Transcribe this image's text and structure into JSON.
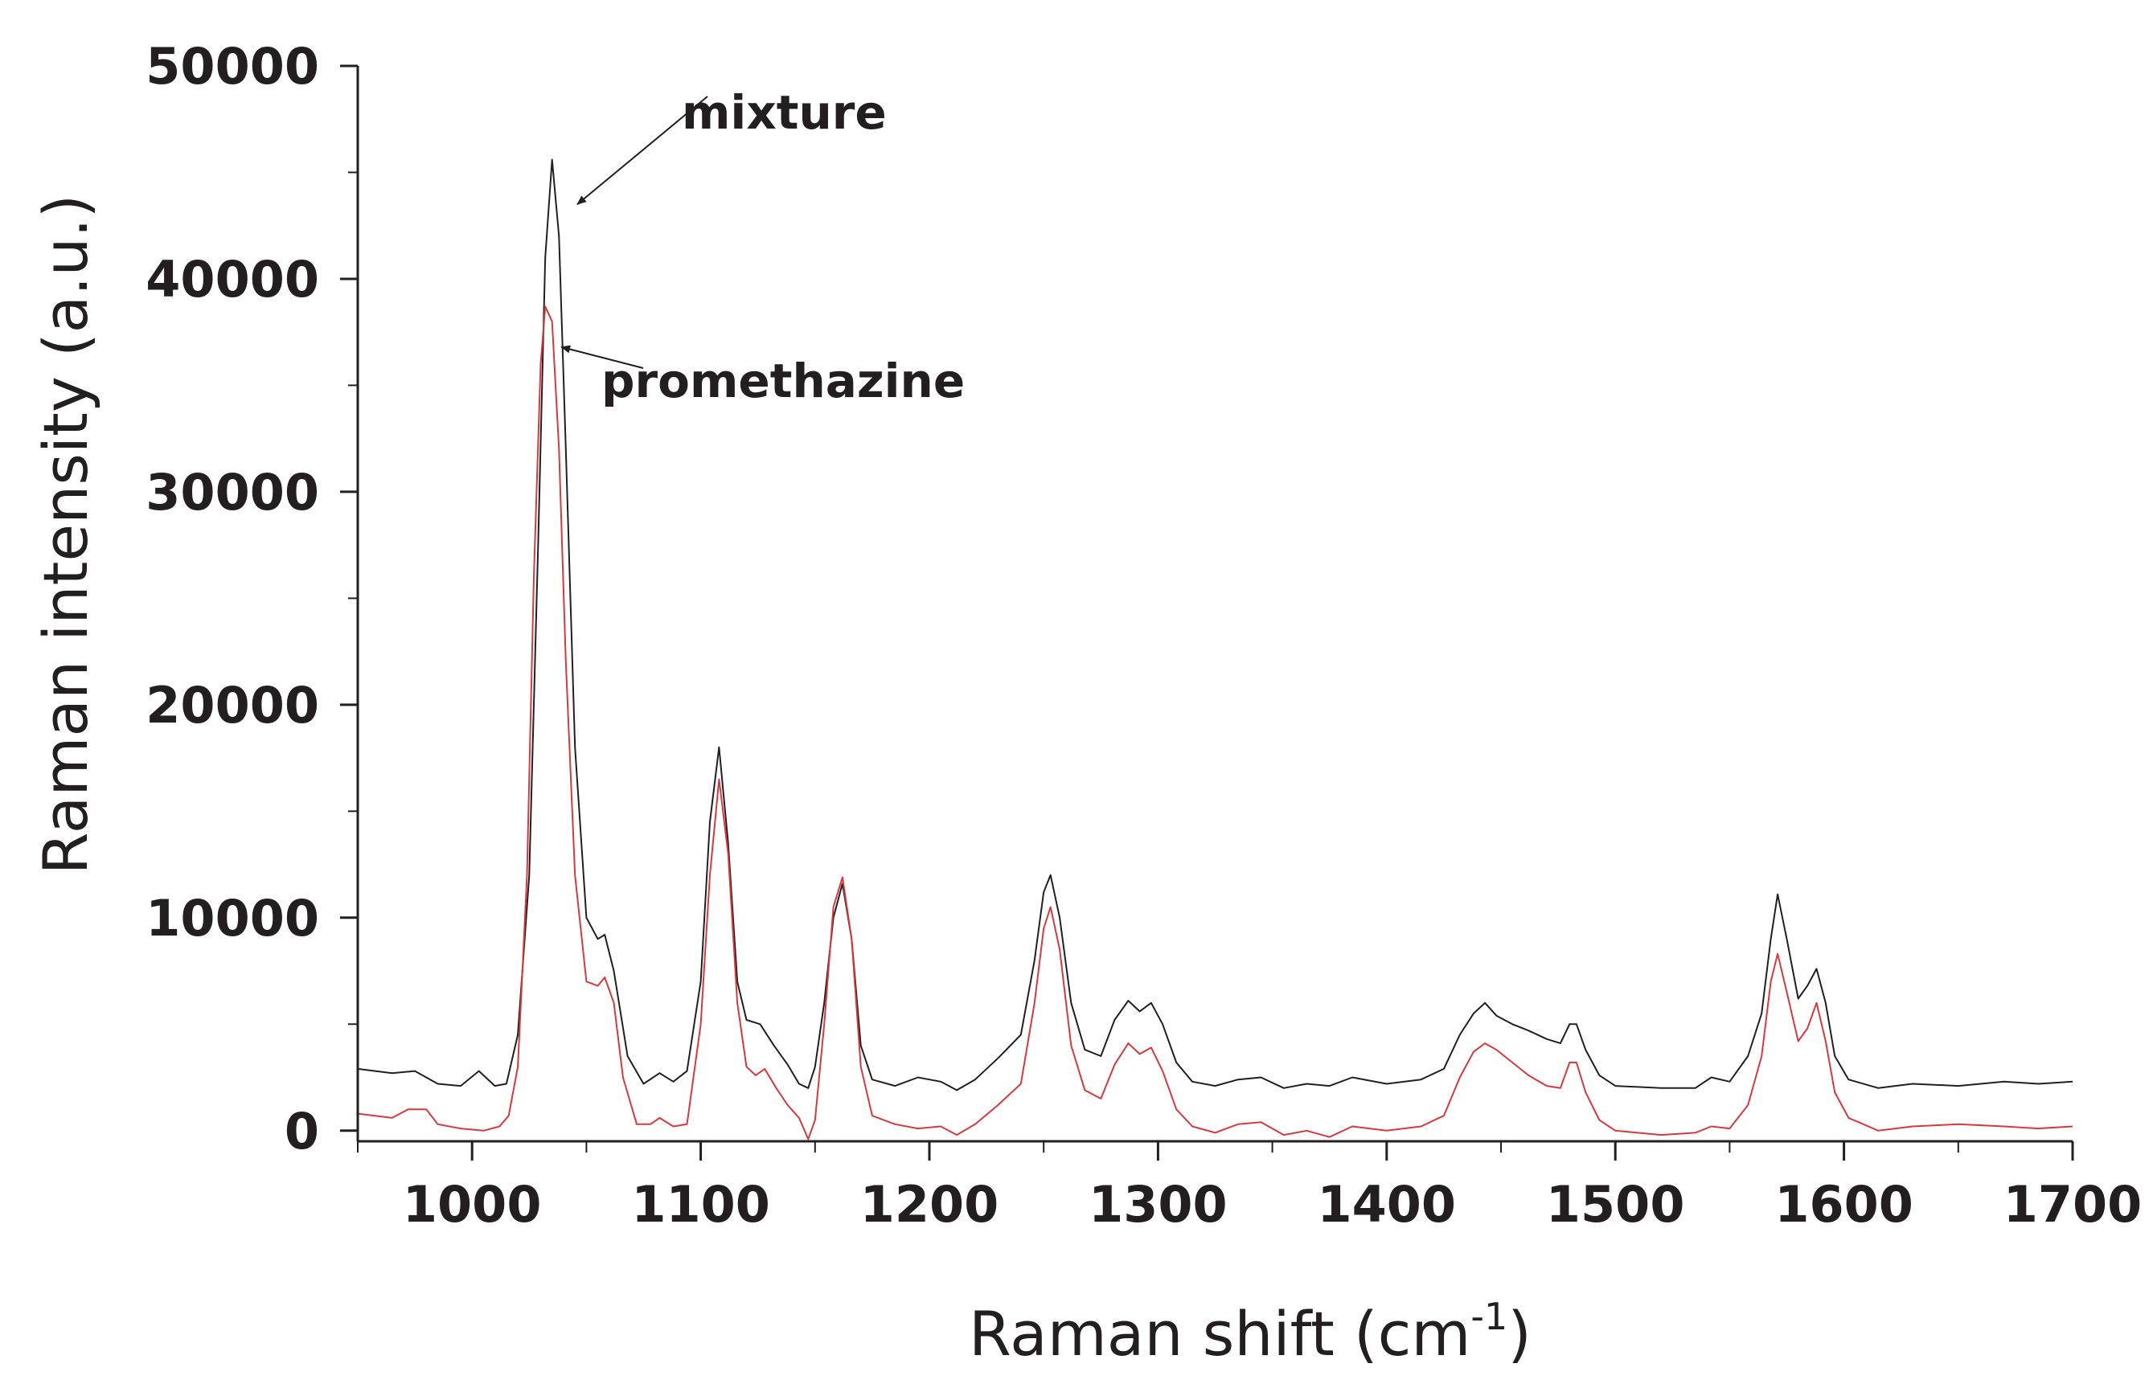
{
  "chart_data": {
    "type": "line",
    "title": "",
    "xlabel": "Raman shift (cm",
    "xlabel_sup": "-1",
    "xlabel_close": ")",
    "ylabel": "Raman intensity (a.u.)",
    "xlim": [
      950,
      1700
    ],
    "ylim": [
      -500,
      50000
    ],
    "xticks": [
      1000,
      1100,
      1200,
      1300,
      1400,
      1500,
      1600,
      1700
    ],
    "xtick_labels": [
      "1000",
      "1100",
      "1200",
      "1300",
      "1400",
      "1500",
      "1600",
      "1700"
    ],
    "yticks": [
      0,
      10000,
      20000,
      30000,
      40000,
      50000
    ],
    "ytick_labels": [
      "0",
      "10000",
      "20000",
      "30000",
      "40000",
      "50000"
    ],
    "grid": false,
    "annotations": [
      {
        "text": "mixture",
        "points_to": {
          "x": 1046,
          "y": 43500
        }
      },
      {
        "text": "promethazine",
        "points_to": {
          "x": 1039,
          "y": 36800
        }
      }
    ],
    "series": [
      {
        "key": "mixture",
        "color": "#231f20",
        "points": [
          [
            950,
            2900
          ],
          [
            965,
            2700
          ],
          [
            975,
            2800
          ],
          [
            985,
            2200
          ],
          [
            995,
            2100
          ],
          [
            1003,
            2800
          ],
          [
            1010,
            2100
          ],
          [
            1015,
            2200
          ],
          [
            1020,
            4500
          ],
          [
            1025,
            12000
          ],
          [
            1029,
            28000
          ],
          [
            1032,
            41000
          ],
          [
            1035,
            45600
          ],
          [
            1038,
            42000
          ],
          [
            1041,
            32000
          ],
          [
            1045,
            18000
          ],
          [
            1050,
            10000
          ],
          [
            1055,
            9000
          ],
          [
            1058,
            9200
          ],
          [
            1062,
            7500
          ],
          [
            1068,
            3500
          ],
          [
            1075,
            2200
          ],
          [
            1082,
            2700
          ],
          [
            1088,
            2300
          ],
          [
            1094,
            2800
          ],
          [
            1100,
            7000
          ],
          [
            1104,
            14500
          ],
          [
            1108,
            18000
          ],
          [
            1112,
            13500
          ],
          [
            1116,
            7000
          ],
          [
            1120,
            5200
          ],
          [
            1126,
            5000
          ],
          [
            1132,
            4000
          ],
          [
            1138,
            3100
          ],
          [
            1143,
            2200
          ],
          [
            1147,
            2000
          ],
          [
            1150,
            3000
          ],
          [
            1154,
            6000
          ],
          [
            1158,
            10000
          ],
          [
            1162,
            11600
          ],
          [
            1166,
            9000
          ],
          [
            1170,
            4000
          ],
          [
            1175,
            2400
          ],
          [
            1185,
            2100
          ],
          [
            1195,
            2500
          ],
          [
            1205,
            2300
          ],
          [
            1212,
            1900
          ],
          [
            1220,
            2400
          ],
          [
            1230,
            3400
          ],
          [
            1240,
            4500
          ],
          [
            1246,
            8000
          ],
          [
            1250,
            11200
          ],
          [
            1253,
            12000
          ],
          [
            1257,
            10000
          ],
          [
            1262,
            6000
          ],
          [
            1268,
            3800
          ],
          [
            1275,
            3500
          ],
          [
            1281,
            5200
          ],
          [
            1287,
            6100
          ],
          [
            1292,
            5600
          ],
          [
            1297,
            6000
          ],
          [
            1302,
            5000
          ],
          [
            1308,
            3200
          ],
          [
            1315,
            2300
          ],
          [
            1325,
            2100
          ],
          [
            1335,
            2400
          ],
          [
            1345,
            2500
          ],
          [
            1355,
            2000
          ],
          [
            1365,
            2200
          ],
          [
            1375,
            2100
          ],
          [
            1385,
            2500
          ],
          [
            1400,
            2200
          ],
          [
            1415,
            2400
          ],
          [
            1425,
            2900
          ],
          [
            1432,
            4500
          ],
          [
            1438,
            5500
          ],
          [
            1443,
            6000
          ],
          [
            1448,
            5400
          ],
          [
            1455,
            5000
          ],
          [
            1462,
            4700
          ],
          [
            1470,
            4300
          ],
          [
            1476,
            4100
          ],
          [
            1480,
            5000
          ],
          [
            1483,
            5000
          ],
          [
            1487,
            3800
          ],
          [
            1493,
            2600
          ],
          [
            1500,
            2100
          ],
          [
            1520,
            2000
          ],
          [
            1535,
            2000
          ],
          [
            1542,
            2500
          ],
          [
            1550,
            2300
          ],
          [
            1558,
            3500
          ],
          [
            1564,
            5500
          ],
          [
            1568,
            9000
          ],
          [
            1571,
            11100
          ],
          [
            1575,
            9000
          ],
          [
            1580,
            6200
          ],
          [
            1584,
            6800
          ],
          [
            1588,
            7600
          ],
          [
            1592,
            6000
          ],
          [
            1596,
            3500
          ],
          [
            1602,
            2400
          ],
          [
            1615,
            2000
          ],
          [
            1630,
            2200
          ],
          [
            1650,
            2100
          ],
          [
            1670,
            2300
          ],
          [
            1685,
            2200
          ],
          [
            1700,
            2300
          ]
        ]
      },
      {
        "key": "promethazine",
        "color": "#d63a3f",
        "points": [
          [
            950,
            800
          ],
          [
            965,
            600
          ],
          [
            972,
            1000
          ],
          [
            980,
            1000
          ],
          [
            985,
            300
          ],
          [
            995,
            100
          ],
          [
            1005,
            0
          ],
          [
            1012,
            200
          ],
          [
            1016,
            700
          ],
          [
            1020,
            3000
          ],
          [
            1024,
            12000
          ],
          [
            1027,
            26000
          ],
          [
            1030,
            36000
          ],
          [
            1032,
            38700
          ],
          [
            1035,
            38000
          ],
          [
            1038,
            32000
          ],
          [
            1041,
            22000
          ],
          [
            1045,
            12000
          ],
          [
            1050,
            7000
          ],
          [
            1055,
            6800
          ],
          [
            1058,
            7200
          ],
          [
            1062,
            6000
          ],
          [
            1066,
            2500
          ],
          [
            1072,
            300
          ],
          [
            1078,
            300
          ],
          [
            1082,
            600
          ],
          [
            1088,
            200
          ],
          [
            1094,
            300
          ],
          [
            1100,
            5000
          ],
          [
            1104,
            12000
          ],
          [
            1108,
            16500
          ],
          [
            1112,
            13000
          ],
          [
            1116,
            6000
          ],
          [
            1120,
            3000
          ],
          [
            1124,
            2600
          ],
          [
            1128,
            2900
          ],
          [
            1133,
            2000
          ],
          [
            1138,
            1200
          ],
          [
            1143,
            600
          ],
          [
            1147,
            -400
          ],
          [
            1150,
            500
          ],
          [
            1154,
            5000
          ],
          [
            1158,
            10500
          ],
          [
            1162,
            11900
          ],
          [
            1166,
            9000
          ],
          [
            1170,
            3000
          ],
          [
            1175,
            700
          ],
          [
            1185,
            300
          ],
          [
            1195,
            100
          ],
          [
            1205,
            200
          ],
          [
            1212,
            -200
          ],
          [
            1220,
            300
          ],
          [
            1230,
            1200
          ],
          [
            1240,
            2200
          ],
          [
            1246,
            6000
          ],
          [
            1250,
            9500
          ],
          [
            1253,
            10500
          ],
          [
            1257,
            8500
          ],
          [
            1262,
            4000
          ],
          [
            1268,
            1900
          ],
          [
            1275,
            1500
          ],
          [
            1281,
            3100
          ],
          [
            1287,
            4100
          ],
          [
            1292,
            3600
          ],
          [
            1297,
            3900
          ],
          [
            1302,
            2800
          ],
          [
            1308,
            1000
          ],
          [
            1315,
            200
          ],
          [
            1325,
            -100
          ],
          [
            1335,
            300
          ],
          [
            1345,
            400
          ],
          [
            1355,
            -200
          ],
          [
            1365,
            0
          ],
          [
            1375,
            -300
          ],
          [
            1385,
            200
          ],
          [
            1400,
            0
          ],
          [
            1415,
            200
          ],
          [
            1425,
            700
          ],
          [
            1432,
            2500
          ],
          [
            1438,
            3700
          ],
          [
            1443,
            4100
          ],
          [
            1448,
            3800
          ],
          [
            1455,
            3200
          ],
          [
            1462,
            2600
          ],
          [
            1470,
            2100
          ],
          [
            1476,
            2000
          ],
          [
            1480,
            3200
          ],
          [
            1483,
            3200
          ],
          [
            1487,
            1800
          ],
          [
            1493,
            500
          ],
          [
            1500,
            0
          ],
          [
            1520,
            -200
          ],
          [
            1535,
            -100
          ],
          [
            1542,
            200
          ],
          [
            1550,
            100
          ],
          [
            1558,
            1200
          ],
          [
            1564,
            3500
          ],
          [
            1568,
            7000
          ],
          [
            1571,
            8300
          ],
          [
            1575,
            6500
          ],
          [
            1580,
            4200
          ],
          [
            1584,
            4800
          ],
          [
            1588,
            6000
          ],
          [
            1592,
            4200
          ],
          [
            1596,
            1800
          ],
          [
            1602,
            600
          ],
          [
            1615,
            0
          ],
          [
            1630,
            200
          ],
          [
            1650,
            300
          ],
          [
            1670,
            200
          ],
          [
            1685,
            100
          ],
          [
            1700,
            200
          ]
        ]
      }
    ]
  }
}
